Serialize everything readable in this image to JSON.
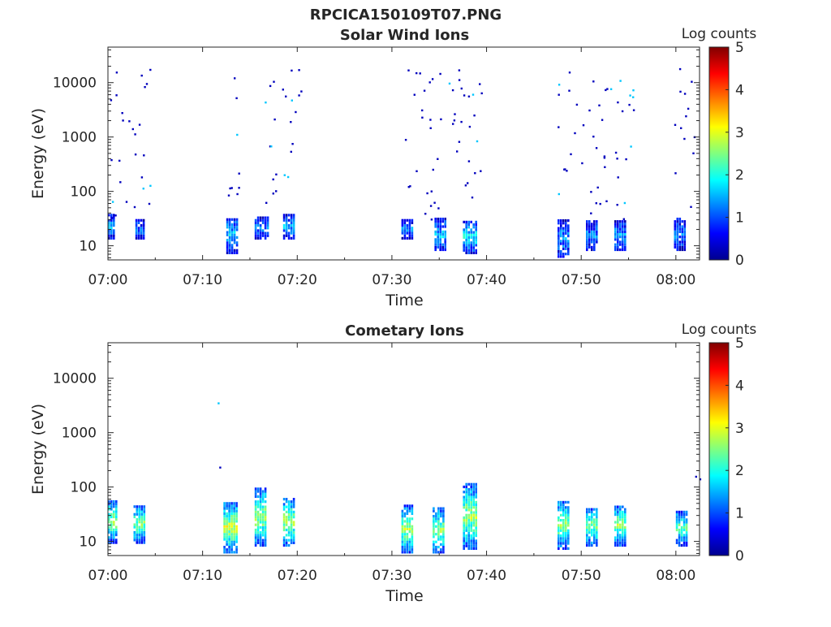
{
  "figure": {
    "title": "RPCICA150109T07.PNG"
  },
  "chart_data": [
    {
      "type": "heatmap",
      "title": "Solar Wind Ions",
      "xlabel": "Time",
      "ylabel": "Energy (eV)",
      "x_ticks": [
        "07:00",
        "07:10",
        "07:20",
        "07:30",
        "07:40",
        "07:50",
        "08:00"
      ],
      "x_range_minutes": [
        0,
        62.5
      ],
      "y_scale": "log",
      "y_ticks": [
        "10",
        "100",
        "1000",
        "10000"
      ],
      "y_range": [
        5.5,
        45000
      ],
      "colorbar": {
        "label": "Log counts",
        "range": [
          0,
          5
        ],
        "ticks": [
          "0",
          "1",
          "2",
          "3",
          "4",
          "5"
        ],
        "colormap": "jet"
      },
      "bursts": [
        {
          "t": 0.0,
          "dur": 0.8,
          "e_low": 13,
          "e_high": 35,
          "peak": 1.5
        },
        {
          "t": 2.9,
          "dur": 1.1,
          "e_low": 13,
          "e_high": 28,
          "peak": 1.2
        },
        {
          "t": 12.5,
          "dur": 1.2,
          "e_low": 7,
          "e_high": 32,
          "peak": 1.6
        },
        {
          "t": 15.5,
          "dur": 1.5,
          "e_low": 13,
          "e_high": 32,
          "peak": 1.2
        },
        {
          "t": 18.5,
          "dur": 1.2,
          "e_low": 13,
          "e_high": 35,
          "peak": 1.5
        },
        {
          "t": 31.0,
          "dur": 1.4,
          "e_low": 13,
          "e_high": 28,
          "peak": 1.3
        },
        {
          "t": 34.5,
          "dur": 1.4,
          "e_low": 8,
          "e_high": 30,
          "peak": 1.6
        },
        {
          "t": 37.5,
          "dur": 1.6,
          "e_low": 7,
          "e_high": 28,
          "peak": 1.9
        },
        {
          "t": 47.5,
          "dur": 1.4,
          "e_low": 6,
          "e_high": 28,
          "peak": 1.4
        },
        {
          "t": 50.5,
          "dur": 1.4,
          "e_low": 8,
          "e_high": 28,
          "peak": 1.3
        },
        {
          "t": 53.5,
          "dur": 1.4,
          "e_low": 8,
          "e_high": 28,
          "peak": 1.4
        },
        {
          "t": 59.8,
          "dur": 1.4,
          "e_low": 8,
          "e_high": 30,
          "peak": 1.3
        }
      ],
      "scatter_windows": [
        [
          0,
          4.5
        ],
        [
          12.5,
          14
        ],
        [
          16.5,
          20.5
        ],
        [
          31,
          39.5
        ],
        [
          47.5,
          55.5
        ],
        [
          59.8,
          62
        ]
      ]
    },
    {
      "type": "heatmap",
      "title": "Cometary Ions",
      "xlabel": "Time",
      "ylabel": "Energy (eV)",
      "x_ticks": [
        "07:00",
        "07:10",
        "07:20",
        "07:30",
        "07:40",
        "07:50",
        "08:00"
      ],
      "x_range_minutes": [
        0,
        62.5
      ],
      "y_scale": "log",
      "y_ticks": [
        "10",
        "100",
        "1000",
        "10000"
      ],
      "y_range": [
        5.5,
        45000
      ],
      "colorbar": {
        "label": "Log counts",
        "range": [
          0,
          5
        ],
        "ticks": [
          "0",
          "1",
          "2",
          "3",
          "4",
          "5"
        ],
        "colormap": "jet"
      },
      "bursts": [
        {
          "t": 0.0,
          "dur": 1.0,
          "e_low": 9,
          "e_high": 55,
          "peak": 2.6
        },
        {
          "t": 2.7,
          "dur": 1.2,
          "e_low": 9,
          "e_high": 45,
          "peak": 2.5
        },
        {
          "t": 12.2,
          "dur": 1.5,
          "e_low": 6,
          "e_high": 50,
          "peak": 2.9
        },
        {
          "t": 15.5,
          "dur": 1.4,
          "e_low": 8,
          "e_high": 90,
          "peak": 2.7
        },
        {
          "t": 18.5,
          "dur": 1.4,
          "e_low": 8,
          "e_high": 60,
          "peak": 2.7
        },
        {
          "t": 31.0,
          "dur": 1.3,
          "e_low": 6,
          "e_high": 45,
          "peak": 2.7
        },
        {
          "t": 34.3,
          "dur": 1.3,
          "e_low": 6,
          "e_high": 40,
          "peak": 2.6
        },
        {
          "t": 37.5,
          "dur": 1.5,
          "e_low": 7,
          "e_high": 110,
          "peak": 2.7
        },
        {
          "t": 47.5,
          "dur": 1.2,
          "e_low": 7,
          "e_high": 55,
          "peak": 2.6
        },
        {
          "t": 50.5,
          "dur": 1.3,
          "e_low": 8,
          "e_high": 40,
          "peak": 2.5
        },
        {
          "t": 53.5,
          "dur": 1.3,
          "e_low": 8,
          "e_high": 45,
          "peak": 2.6
        },
        {
          "t": 60.0,
          "dur": 1.4,
          "e_low": 8,
          "e_high": 35,
          "peak": 2.4
        }
      ],
      "scatter_windows": [
        [
          11.5,
          12
        ],
        [
          61.9,
          62.5
        ]
      ]
    }
  ]
}
